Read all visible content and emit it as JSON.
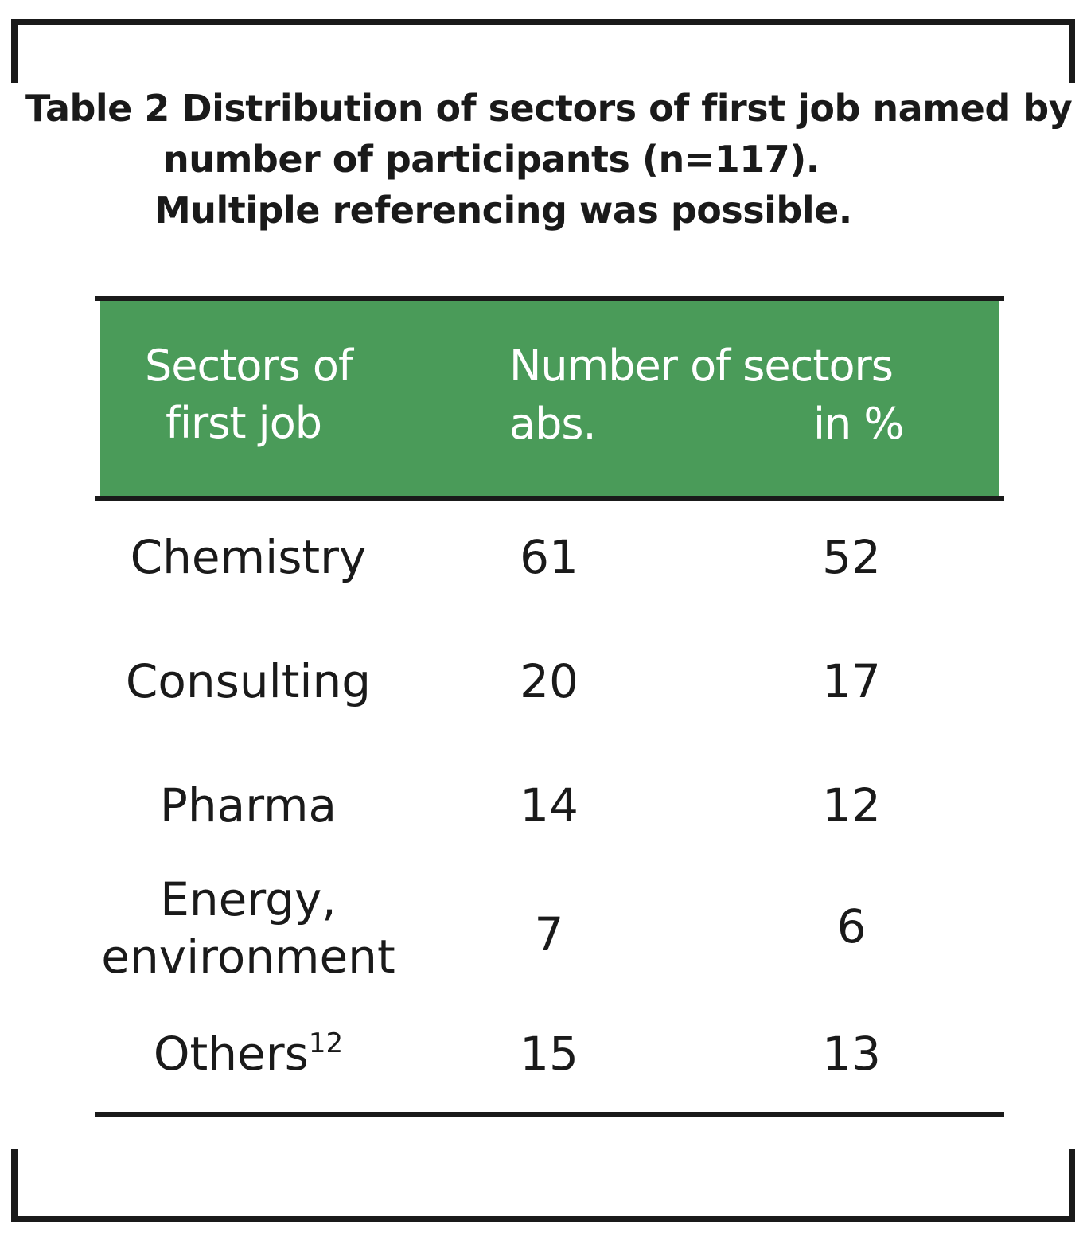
{
  "caption": {
    "line1": "Table 2 Distribution of sectors of first job named by",
    "line2": "number of participants (n=117).",
    "line3": "Multiple referencing was possible."
  },
  "colors": {
    "header_bg": "#4a9b59",
    "header_text": "#ffffff",
    "text": "#1a1a1a"
  },
  "table": {
    "headers": {
      "sector_line1": "Sectors of",
      "sector_line2": "first job",
      "number": "Number of sectors",
      "abs": "abs.",
      "pct": "in %"
    },
    "rows": [
      {
        "sector": "Chemistry",
        "abs": "61",
        "pct": "52"
      },
      {
        "sector": "Consulting",
        "abs": "20",
        "pct": "17"
      },
      {
        "sector": "Pharma",
        "abs": "14",
        "pct": "12"
      },
      {
        "sector_line1": "Energy,",
        "sector_line2": "environment",
        "abs": "7",
        "pct": "6"
      },
      {
        "sector": "Others",
        "sector_sup": "12",
        "abs": "15",
        "pct": "13"
      }
    ]
  }
}
